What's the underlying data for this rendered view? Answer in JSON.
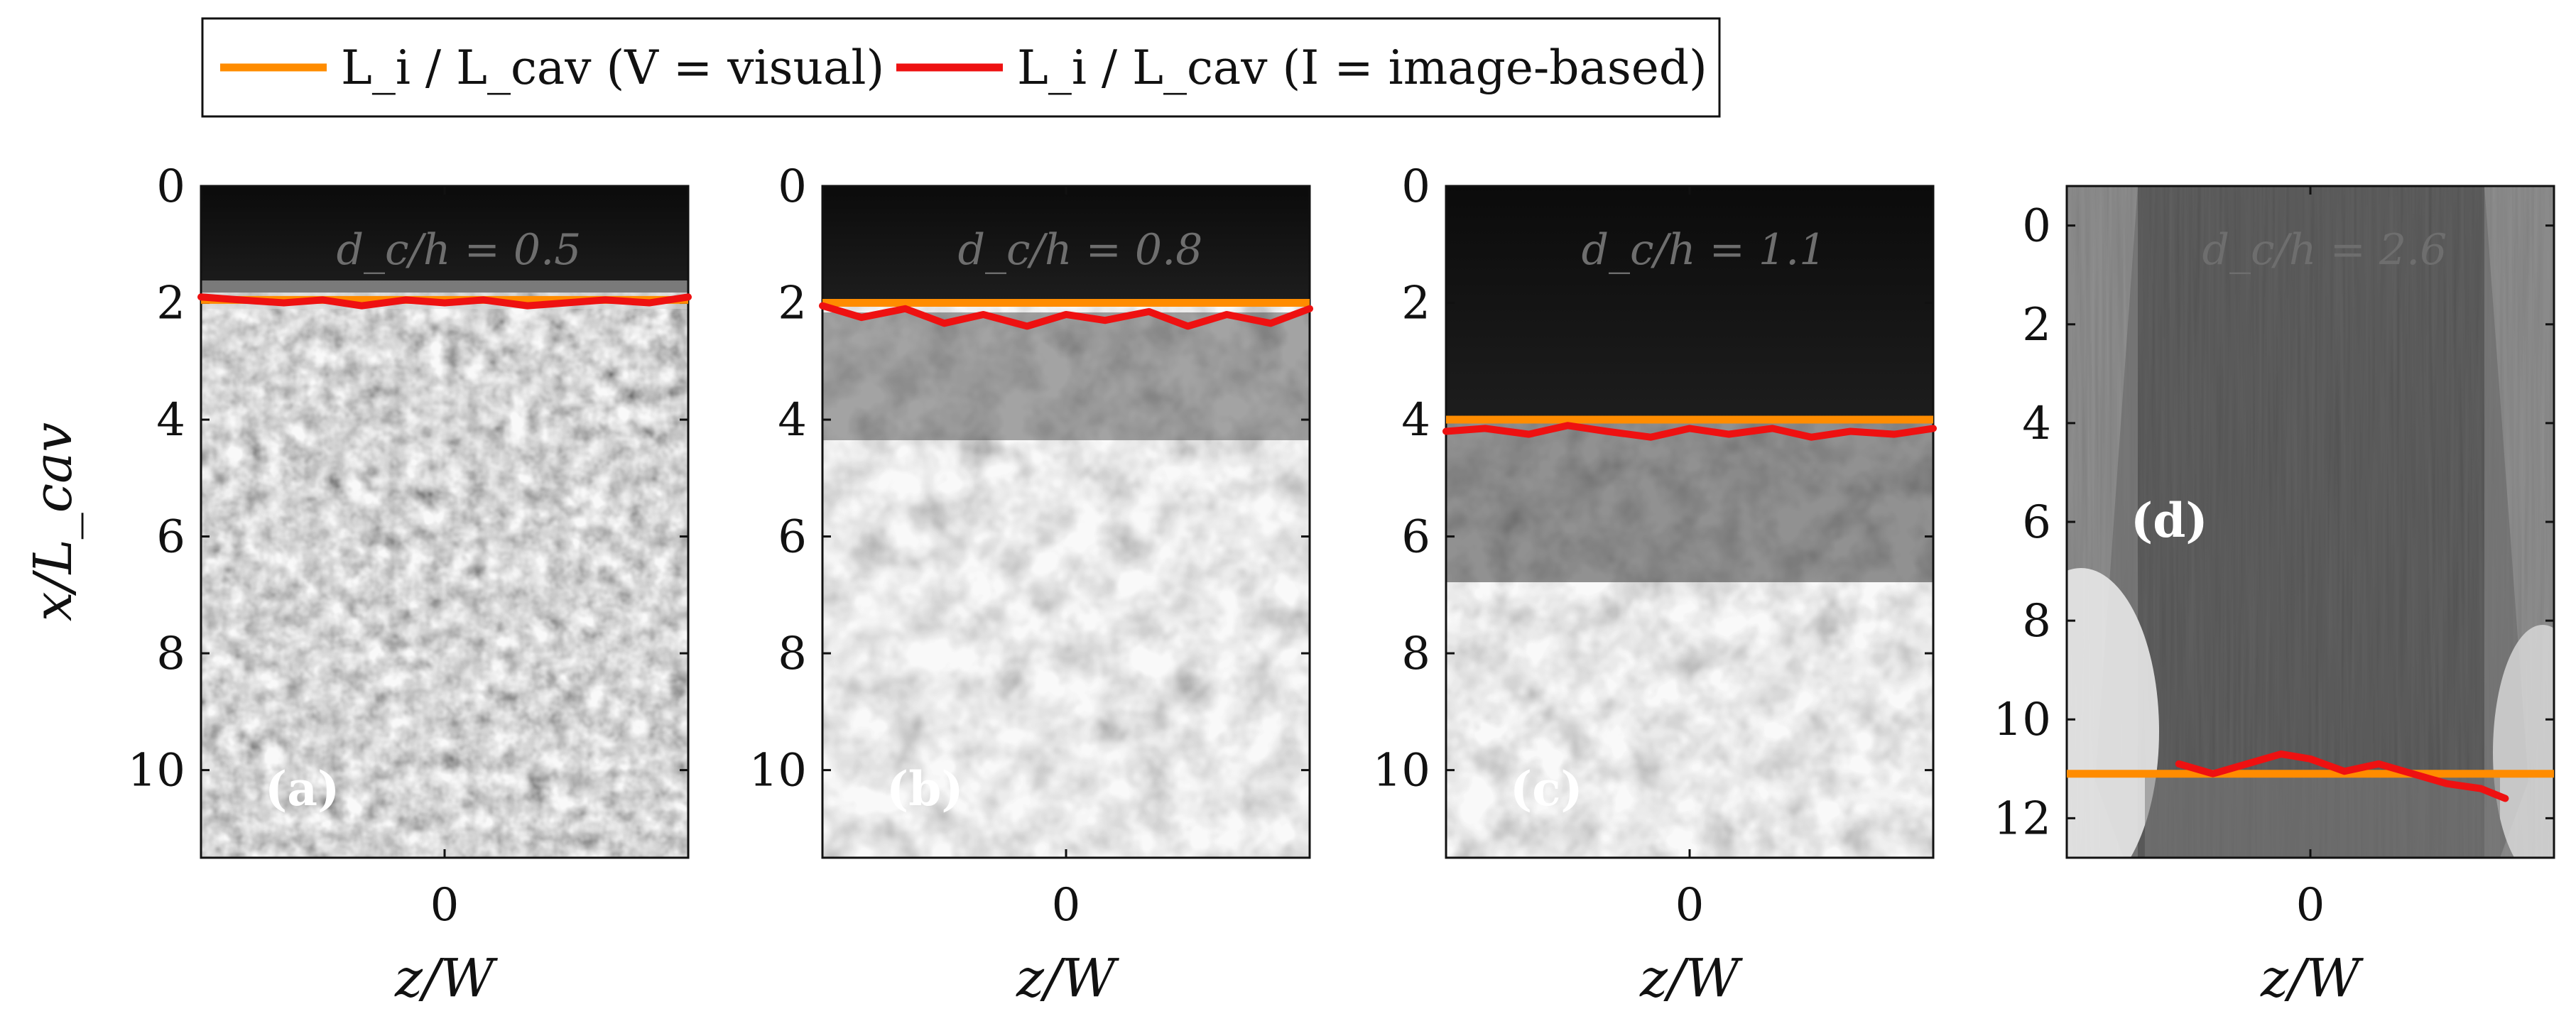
{
  "legend": {
    "visual": {
      "label": "L_i / L_cav (V = visual)",
      "color": "#ff8c00"
    },
    "image": {
      "label": "L_i / L_cav (I = image-based)",
      "color": "#ee1111"
    }
  },
  "ylabel": "x/L_cav",
  "chart_data": [
    {
      "type": "line",
      "panel_label": "(a)",
      "annotation": "d_c/h = 0.5",
      "xlabel": "z/W",
      "xticks": [
        "0"
      ],
      "yticks": [
        "0",
        "2",
        "4",
        "6",
        "8",
        "10"
      ],
      "ylim": [
        0,
        11.5
      ],
      "zlim": [
        -0.5,
        0.5
      ],
      "visual_Li": 1.95,
      "image_Li": {
        "z": [
          -0.5,
          -0.42,
          -0.33,
          -0.25,
          -0.17,
          -0.08,
          0.0,
          0.08,
          0.17,
          0.25,
          0.33,
          0.42,
          0.5
        ],
        "x": [
          1.9,
          1.95,
          2.0,
          1.95,
          2.05,
          1.95,
          2.0,
          1.95,
          2.05,
          2.0,
          1.95,
          2.0,
          1.9
        ]
      }
    },
    {
      "type": "line",
      "panel_label": "(b)",
      "annotation": "d_c/h = 0.8",
      "xlabel": "z/W",
      "xticks": [
        "0"
      ],
      "yticks": [
        "0",
        "2",
        "4",
        "6",
        "8",
        "10"
      ],
      "ylim": [
        0,
        11.5
      ],
      "zlim": [
        -0.5,
        0.5
      ],
      "visual_Li": 2.0,
      "image_Li": {
        "z": [
          -0.5,
          -0.42,
          -0.33,
          -0.25,
          -0.17,
          -0.08,
          0.0,
          0.08,
          0.17,
          0.25,
          0.33,
          0.42,
          0.5
        ],
        "x": [
          2.05,
          2.25,
          2.1,
          2.35,
          2.2,
          2.4,
          2.2,
          2.3,
          2.15,
          2.4,
          2.2,
          2.35,
          2.1
        ]
      }
    },
    {
      "type": "line",
      "panel_label": "(c)",
      "annotation": "d_c/h = 1.1",
      "xlabel": "z/W",
      "xticks": [
        "0"
      ],
      "yticks": [
        "0",
        "2",
        "4",
        "6",
        "8",
        "10"
      ],
      "ylim": [
        0,
        11.5
      ],
      "zlim": [
        -0.5,
        0.5
      ],
      "visual_Li": 4.0,
      "image_Li": {
        "z": [
          -0.5,
          -0.42,
          -0.33,
          -0.25,
          -0.17,
          -0.08,
          0.0,
          0.08,
          0.17,
          0.25,
          0.33,
          0.42,
          0.5
        ],
        "x": [
          4.2,
          4.15,
          4.25,
          4.1,
          4.2,
          4.3,
          4.15,
          4.25,
          4.15,
          4.3,
          4.2,
          4.25,
          4.15
        ]
      }
    },
    {
      "type": "line",
      "panel_label": "(d)",
      "annotation": "d_c/h = 2.6",
      "xlabel": "z/W",
      "xticks": [
        "0"
      ],
      "yticks": [
        "0",
        "2",
        "4",
        "6",
        "8",
        "10",
        "12"
      ],
      "ylim": [
        -0.8,
        12.8
      ],
      "zlim": [
        -0.5,
        0.5
      ],
      "visual_Li": 11.1,
      "image_Li": {
        "z": [
          -0.27,
          -0.2,
          -0.13,
          -0.06,
          0.0,
          0.07,
          0.14,
          0.21,
          0.28,
          0.35,
          0.4
        ],
        "x": [
          10.9,
          11.1,
          10.9,
          10.7,
          10.8,
          11.05,
          10.9,
          11.1,
          11.3,
          11.4,
          11.6
        ]
      }
    }
  ]
}
